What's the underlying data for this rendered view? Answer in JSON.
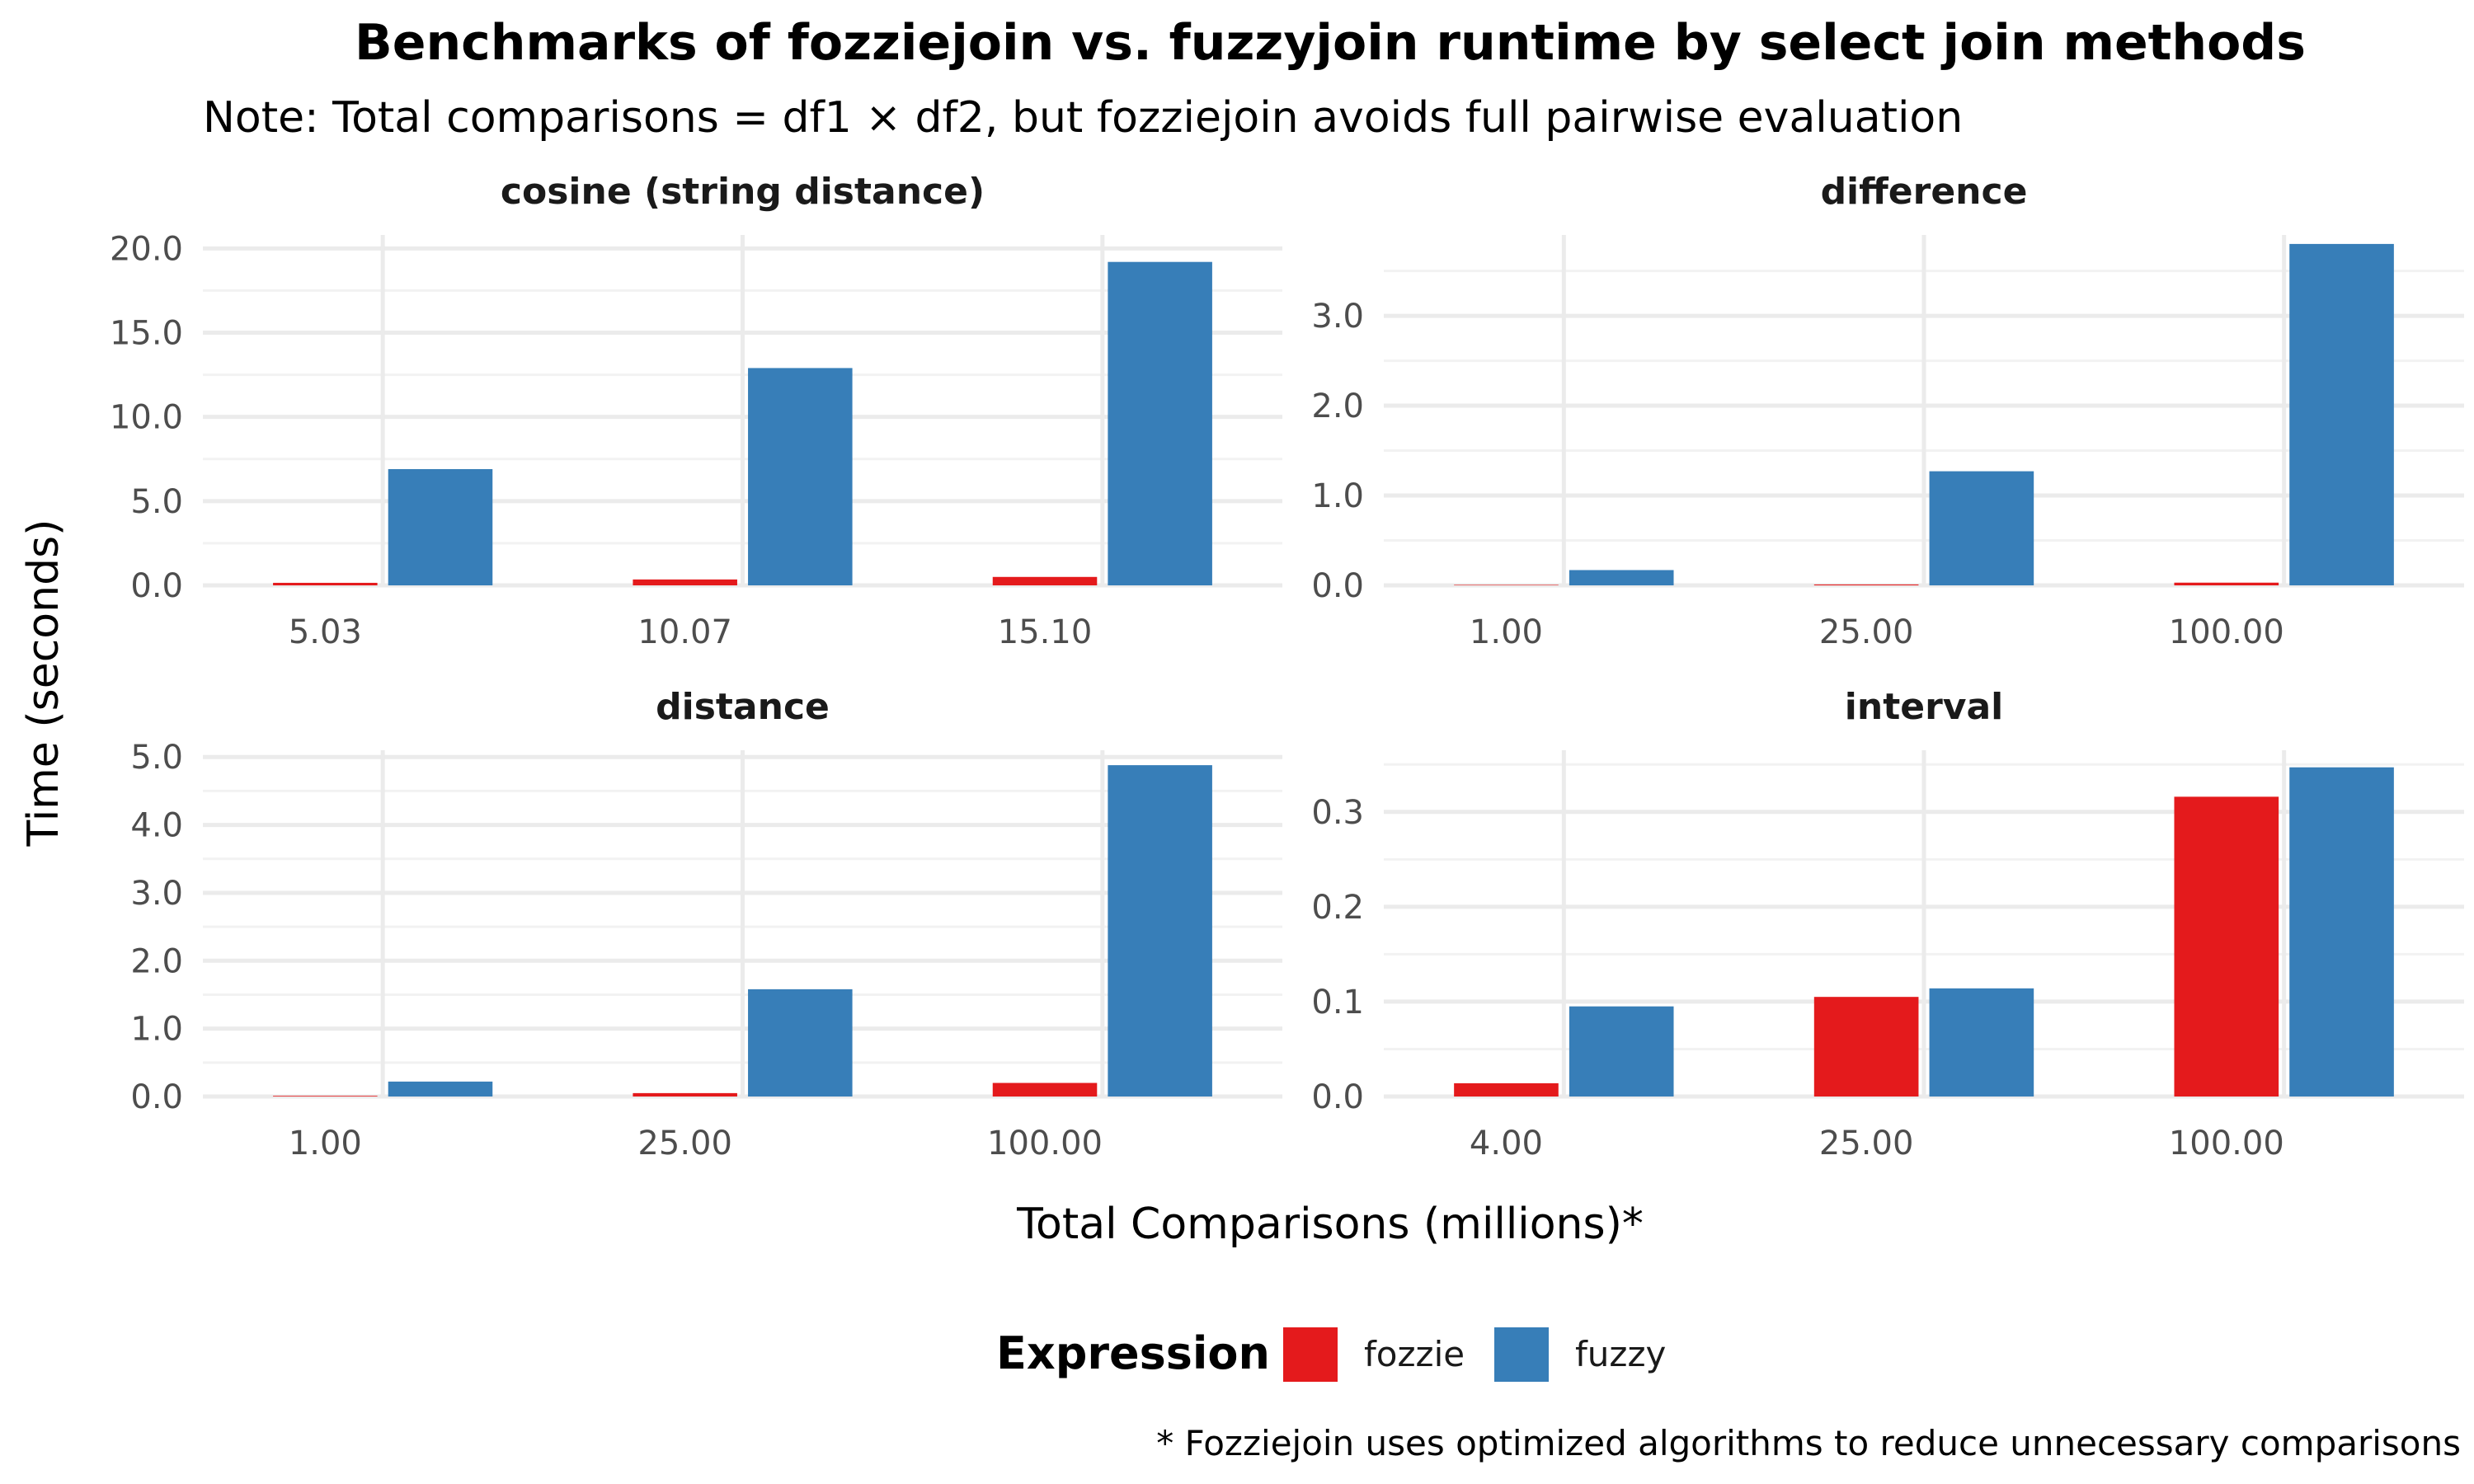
{
  "chart_data": {
    "type": "bar",
    "title": "Benchmarks of fozziejoin vs. fuzzyjoin runtime by select join methods",
    "subtitle": "Note: Total comparisons = df1 × df2, but fozziejoin avoids full pairwise evaluation",
    "xlabel": "Total Comparisons (millions)*",
    "ylabel": "Time (seconds)",
    "caption": "* Fozziejoin uses optimized algorithms to reduce unnecessary comparisons",
    "legend": {
      "title": "Expression",
      "position": "bottom",
      "entries": [
        {
          "name": "fozzie",
          "color": "#e41a1c"
        },
        {
          "name": "fuzzy",
          "color": "#377eb8"
        }
      ]
    },
    "grid": true,
    "facets": [
      {
        "name": "cosine (string distance)",
        "categories": [
          "5.03",
          "10.07",
          "15.10"
        ],
        "ylim": [
          0,
          20.8
        ],
        "yticks": [
          "0.0",
          "5.0",
          "10.0",
          "15.0",
          "20.0"
        ],
        "series": [
          {
            "name": "fozzie",
            "values": [
              0.15,
              0.35,
              0.5
            ]
          },
          {
            "name": "fuzzy",
            "values": [
              6.9,
              12.9,
              19.2
            ]
          }
        ]
      },
      {
        "name": "difference",
        "categories": [
          "1.00",
          "25.00",
          "100.00"
        ],
        "ylim": [
          0,
          3.9
        ],
        "yticks": [
          "0.0",
          "1.0",
          "2.0",
          "3.0"
        ],
        "series": [
          {
            "name": "fozzie",
            "values": [
              0.0,
              0.01,
              0.03
            ]
          },
          {
            "name": "fuzzy",
            "values": [
              0.17,
              1.27,
              3.8
            ]
          }
        ]
      },
      {
        "name": "distance",
        "categories": [
          "1.00",
          "25.00",
          "100.00"
        ],
        "ylim": [
          0,
          5.1
        ],
        "yticks": [
          "0.0",
          "1.0",
          "2.0",
          "3.0",
          "4.0",
          "5.0"
        ],
        "series": [
          {
            "name": "fozzie",
            "values": [
              0.01,
              0.05,
              0.2
            ]
          },
          {
            "name": "fuzzy",
            "values": [
              0.22,
              1.58,
              4.88
            ]
          }
        ]
      },
      {
        "name": "interval",
        "categories": [
          "4.00",
          "25.00",
          "100.00"
        ],
        "ylim": [
          0,
          0.365
        ],
        "yticks": [
          "0.0",
          "0.1",
          "0.2",
          "0.3"
        ],
        "series": [
          {
            "name": "fozzie",
            "values": [
              0.014,
              0.105,
              0.316
            ]
          },
          {
            "name": "fuzzy",
            "values": [
              0.095,
              0.114,
              0.347
            ]
          }
        ]
      }
    ]
  }
}
